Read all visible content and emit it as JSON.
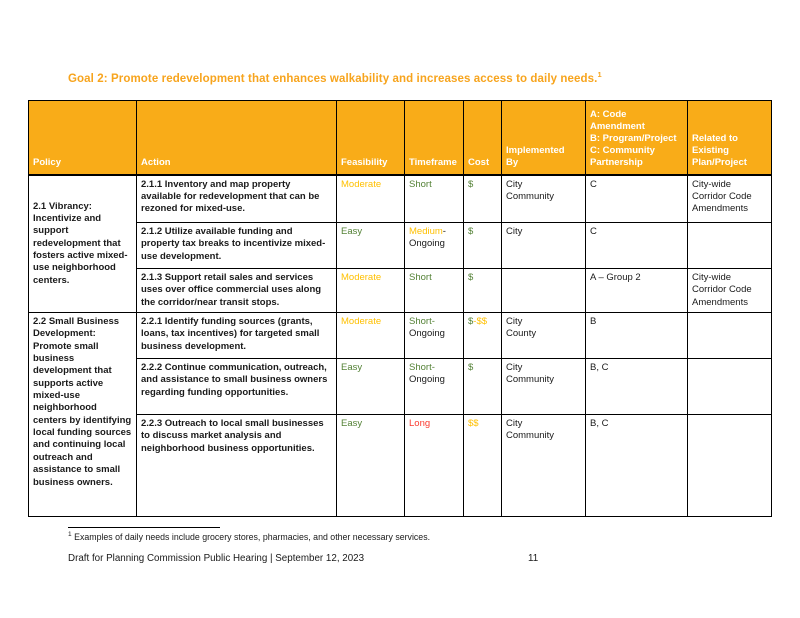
{
  "header": {
    "goal_title": "Goal 2: Promote redevelopment that enhances walkability and increases access to daily needs.",
    "goal_footnote_marker": "1"
  },
  "colors": {
    "title_orange": "#F7A41D",
    "table_header_bg": "#F9AC18",
    "green": "#538135",
    "amber": "#FFC000",
    "red": "#FB3A2F",
    "black": "#1a1a1a"
  },
  "table": {
    "columns": [
      {
        "key": "policy",
        "label": "Policy"
      },
      {
        "key": "action",
        "label": "Action"
      },
      {
        "key": "feasibility",
        "label": "Feasibility"
      },
      {
        "key": "timeframe",
        "label": "Timeframe"
      },
      {
        "key": "cost",
        "label": "Cost"
      },
      {
        "key": "implemented_by",
        "label": "Implemented\nBy"
      },
      {
        "key": "partnership",
        "label": "A: Code\nAmendment\nB: Program/Project\nC: Community\nPartnership"
      },
      {
        "key": "related",
        "label": "Related to\nExisting\nPlan/Project"
      }
    ],
    "sections": [
      {
        "policy": "2.1 Vibrancy: Incentivize and support redevelopment that fosters active mixed-use neighborhood centers.",
        "rows": [
          {
            "action": "2.1.1 Inventory and map property available for redevelopment that can be rezoned for mixed-use.",
            "feasibility": [
              {
                "text": "Moderate",
                "color": "amber"
              }
            ],
            "timeframe": [
              {
                "text": "Short",
                "color": "green"
              }
            ],
            "cost": [
              {
                "text": "$",
                "color": "green"
              }
            ],
            "implemented_by": "City\nCommunity",
            "partnership": "C",
            "related": "City-wide\nCorridor Code\nAmendments"
          },
          {
            "action": "2.1.2 Utilize available funding and property tax breaks to incentivize mixed-use development.",
            "feasibility": [
              {
                "text": "Easy",
                "color": "green"
              }
            ],
            "timeframe": [
              {
                "text": "Medium",
                "color": "amber"
              },
              {
                "text": "-Ongoing",
                "color": "black"
              }
            ],
            "cost": [
              {
                "text": "$",
                "color": "green"
              }
            ],
            "implemented_by": "City",
            "partnership": "C",
            "related": ""
          },
          {
            "action": "2.1.3 Support retail sales and services uses over office commercial uses along the corridor/near transit stops.",
            "feasibility": [
              {
                "text": "Moderate",
                "color": "amber"
              }
            ],
            "timeframe": [
              {
                "text": "Short",
                "color": "green"
              }
            ],
            "cost": [
              {
                "text": "$",
                "color": "green"
              }
            ],
            "implemented_by": "",
            "partnership": "A – Group 2",
            "related": "City-wide\nCorridor Code\nAmendments"
          }
        ]
      },
      {
        "policy": "2.2 Small Business Development: Promote small business development that supports active mixed-use neighborhood centers by identifying local funding sources and continuing local outreach and assistance to small business owners.",
        "rows": [
          {
            "action": "2.2.1 Identify funding sources (grants, loans, tax incentives) for targeted small business development.",
            "feasibility": [
              {
                "text": "Moderate",
                "color": "amber"
              }
            ],
            "timeframe": [
              {
                "text": "Short-",
                "color": "green"
              },
              {
                "text": "Ongoing",
                "color": "black"
              }
            ],
            "cost": [
              {
                "text": "$",
                "color": "green"
              },
              {
                "text": "-$$",
                "color": "amber"
              }
            ],
            "implemented_by": "City\nCounty",
            "partnership": "B",
            "related": ""
          },
          {
            "action": "2.2.2 Continue communication, outreach, and assistance to small business owners regarding funding opportunities.",
            "feasibility": [
              {
                "text": "Easy",
                "color": "green"
              }
            ],
            "timeframe": [
              {
                "text": "Short-",
                "color": "green"
              },
              {
                "text": "Ongoing",
                "color": "black"
              }
            ],
            "cost": [
              {
                "text": "$",
                "color": "green"
              }
            ],
            "implemented_by": "City\nCommunity",
            "partnership": "B, C",
            "related": ""
          },
          {
            "action": "2.2.3 Outreach to local small businesses to discuss market analysis and neighborhood business opportunities.",
            "feasibility": [
              {
                "text": "Easy",
                "color": "green"
              }
            ],
            "timeframe": [
              {
                "text": "Long",
                "color": "red"
              }
            ],
            "cost": [
              {
                "text": "$$",
                "color": "amber"
              }
            ],
            "implemented_by": "City\nCommunity",
            "partnership": "B, C",
            "related": ""
          }
        ]
      }
    ]
  },
  "footer": {
    "footnote_marker": "1",
    "footnote_text": "Examples of daily needs include grocery stores, pharmacies, and other necessary services.",
    "draft_line": "Draft for Planning Commission Public Hearing | September 12, 2023",
    "page_number": "11"
  }
}
